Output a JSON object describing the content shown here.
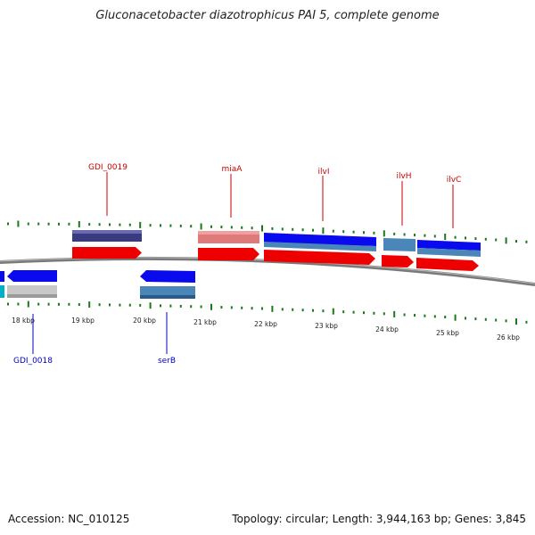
{
  "title": "Gluconacetobacter diazotrophicus PAI 5, complete genome",
  "footer": {
    "accession": "Accession: NC_010125",
    "stats": "Topology: circular; Length: 3,944,163 bp; Genes: 3,845"
  },
  "kbp_labels": [
    "18 kbp",
    "19 kbp",
    "20 kbp",
    "21 kbp",
    "22 kbp",
    "23 kbp",
    "24 kbp",
    "25 kbp",
    "26 kbp"
  ],
  "gene_labels_forward": [
    "GDI_0019",
    "miaA",
    "ilvI",
    "ilvH",
    "ilvC"
  ],
  "gene_labels_reverse": [
    "GDI_0018",
    "serB"
  ],
  "colors": {
    "forward_label": "#cc0000",
    "reverse_label": "#0000cc",
    "tick": "#1a7a1a",
    "backbone": "#888888",
    "cds_red": "#ee0000",
    "gene_blue": "#0a0aee",
    "steel": "#4a86b8",
    "dark_slate": "#3a3a80",
    "pink": "#e07a7a",
    "gray": "#c8c8c8",
    "cyan": "#00b0c8"
  }
}
